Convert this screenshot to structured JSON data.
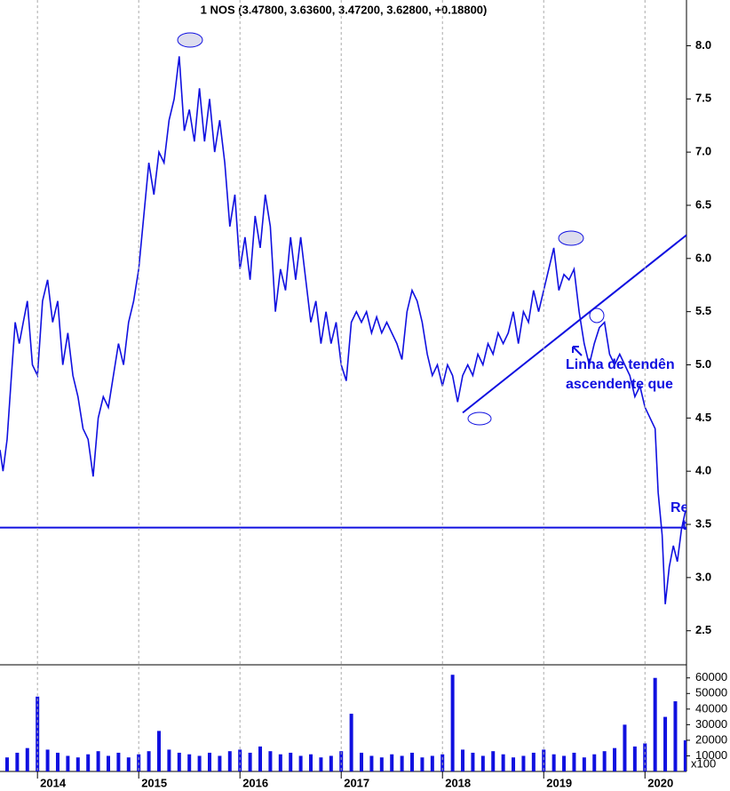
{
  "chart_data": [
    {
      "type": "line",
      "title": "1 NOS (3.47800, 3.63600, 3.47200, 3.62800, +0.18800)",
      "x": [
        2013.63,
        2013.66,
        2013.7,
        2013.75,
        2013.78,
        2013.82,
        2013.86,
        2013.9,
        2013.95,
        2014.0,
        2014.05,
        2014.1,
        2014.15,
        2014.2,
        2014.25,
        2014.3,
        2014.35,
        2014.4,
        2014.45,
        2014.5,
        2014.55,
        2014.6,
        2014.65,
        2014.7,
        2014.75,
        2014.8,
        2014.85,
        2014.9,
        2014.95,
        2015.0,
        2015.05,
        2015.1,
        2015.15,
        2015.2,
        2015.25,
        2015.3,
        2015.35,
        2015.4,
        2015.45,
        2015.5,
        2015.55,
        2015.6,
        2015.65,
        2015.7,
        2015.75,
        2015.8,
        2015.85,
        2015.9,
        2015.95,
        2016.0,
        2016.05,
        2016.1,
        2016.15,
        2016.2,
        2016.25,
        2016.3,
        2016.35,
        2016.4,
        2016.45,
        2016.5,
        2016.55,
        2016.6,
        2016.65,
        2016.7,
        2016.75,
        2016.8,
        2016.85,
        2016.9,
        2016.95,
        2017.0,
        2017.05,
        2017.1,
        2017.15,
        2017.2,
        2017.25,
        2017.3,
        2017.35,
        2017.4,
        2017.45,
        2017.5,
        2017.55,
        2017.6,
        2017.65,
        2017.7,
        2017.75,
        2017.8,
        2017.85,
        2017.9,
        2017.95,
        2018.0,
        2018.05,
        2018.1,
        2018.15,
        2018.2,
        2018.25,
        2018.3,
        2018.35,
        2018.4,
        2018.45,
        2018.5,
        2018.55,
        2018.6,
        2018.65,
        2018.7,
        2018.75,
        2018.8,
        2018.85,
        2018.9,
        2018.95,
        2019.0,
        2019.05,
        2019.1,
        2019.15,
        2019.2,
        2019.25,
        2019.3,
        2019.35,
        2019.4,
        2019.45,
        2019.5,
        2019.55,
        2019.6,
        2019.65,
        2019.7,
        2019.75,
        2019.8,
        2019.85,
        2019.9,
        2019.95,
        2020.0,
        2020.05,
        2020.1,
        2020.13,
        2020.17,
        2020.2,
        2020.24,
        2020.28,
        2020.32,
        2020.36,
        2020.4
      ],
      "series": [
        {
          "name": "NOS",
          "color": "#1010e0",
          "values": [
            4.2,
            4.0,
            4.3,
            5.0,
            5.4,
            5.2,
            5.4,
            5.6,
            5.0,
            4.9,
            5.6,
            5.8,
            5.4,
            5.6,
            5.0,
            5.3,
            4.9,
            4.7,
            4.4,
            4.3,
            3.95,
            4.5,
            4.7,
            4.6,
            4.9,
            5.2,
            5.0,
            5.4,
            5.6,
            5.9,
            6.4,
            6.9,
            6.6,
            7.0,
            6.9,
            7.3,
            7.5,
            7.9,
            7.2,
            7.4,
            7.1,
            7.6,
            7.1,
            7.5,
            7.0,
            7.3,
            6.9,
            6.3,
            6.6,
            5.9,
            6.2,
            5.8,
            6.4,
            6.1,
            6.6,
            6.3,
            5.5,
            5.9,
            5.7,
            6.2,
            5.8,
            6.2,
            5.8,
            5.4,
            5.6,
            5.2,
            5.5,
            5.2,
            5.4,
            5.0,
            4.85,
            5.4,
            5.5,
            5.4,
            5.5,
            5.3,
            5.45,
            5.3,
            5.4,
            5.3,
            5.2,
            5.05,
            5.5,
            5.7,
            5.6,
            5.4,
            5.1,
            4.9,
            5.0,
            4.8,
            5.0,
            4.9,
            4.65,
            4.9,
            5.0,
            4.9,
            5.1,
            5.0,
            5.2,
            5.1,
            5.3,
            5.2,
            5.3,
            5.5,
            5.2,
            5.5,
            5.4,
            5.7,
            5.5,
            5.7,
            5.9,
            6.1,
            5.7,
            5.85,
            5.8,
            5.9,
            5.5,
            5.2,
            5.0,
            5.2,
            5.35,
            5.4,
            5.1,
            5.0,
            5.1,
            5.0,
            4.9,
            4.7,
            4.8,
            4.6,
            4.5,
            4.4,
            3.8,
            3.4,
            2.75,
            3.1,
            3.3,
            3.15,
            3.45,
            3.63
          ]
        }
      ],
      "xlim": [
        2013.63,
        2020.41
      ],
      "xticks": [
        2014,
        2015,
        2016,
        2017,
        2018,
        2019,
        2020
      ],
      "ylim": [
        2.18,
        8.43
      ],
      "yticks": [
        2.5,
        3.0,
        3.5,
        4.0,
        4.5,
        5.0,
        5.5,
        6.0,
        6.5,
        7.0,
        7.5,
        8.0
      ],
      "hline": 3.47,
      "trendline": {
        "x": [
          2018.2,
          2020.41
        ],
        "y": [
          4.55,
          6.22
        ]
      },
      "annotations": [
        "Linha de tendên",
        "ascendente que",
        "Re",
        "te"
      ]
    },
    {
      "type": "bar",
      "x": [
        2013.7,
        2013.8,
        2013.9,
        2014.0,
        2014.1,
        2014.2,
        2014.3,
        2014.4,
        2014.5,
        2014.6,
        2014.7,
        2014.8,
        2014.9,
        2015.0,
        2015.1,
        2015.2,
        2015.3,
        2015.4,
        2015.5,
        2015.6,
        2015.7,
        2015.8,
        2015.9,
        2016.0,
        2016.1,
        2016.2,
        2016.3,
        2016.4,
        2016.5,
        2016.6,
        2016.7,
        2016.8,
        2016.9,
        2017.0,
        2017.1,
        2017.2,
        2017.3,
        2017.4,
        2017.5,
        2017.6,
        2017.7,
        2017.8,
        2017.9,
        2018.0,
        2018.1,
        2018.2,
        2018.3,
        2018.4,
        2018.5,
        2018.6,
        2018.7,
        2018.8,
        2018.9,
        2019.0,
        2019.1,
        2019.2,
        2019.3,
        2019.4,
        2019.5,
        2019.6,
        2019.7,
        2019.8,
        2019.9,
        2020.0,
        2020.1,
        2020.2,
        2020.3,
        2020.4
      ],
      "values": [
        9000,
        12000,
        15000,
        48000,
        14000,
        12000,
        10000,
        9000,
        11000,
        13000,
        10000,
        12000,
        9000,
        11000,
        13000,
        26000,
        14000,
        12000,
        11000,
        10000,
        12000,
        10000,
        13000,
        14000,
        12000,
        16000,
        13000,
        11000,
        12000,
        10000,
        11000,
        9000,
        10000,
        13000,
        37000,
        12000,
        10000,
        9000,
        11000,
        10000,
        12000,
        9000,
        10000,
        11000,
        62000,
        14000,
        12000,
        10000,
        13000,
        11000,
        9000,
        10000,
        12000,
        14000,
        11000,
        10000,
        12000,
        9000,
        11000,
        13000,
        15000,
        30000,
        16000,
        18000,
        60000,
        35000,
        45000,
        20000
      ],
      "color": "#1010e0",
      "ylim": [
        0,
        68400
      ],
      "yticks": [
        10000,
        20000,
        30000,
        40000,
        50000,
        60000
      ],
      "unit_label": "x100"
    }
  ]
}
